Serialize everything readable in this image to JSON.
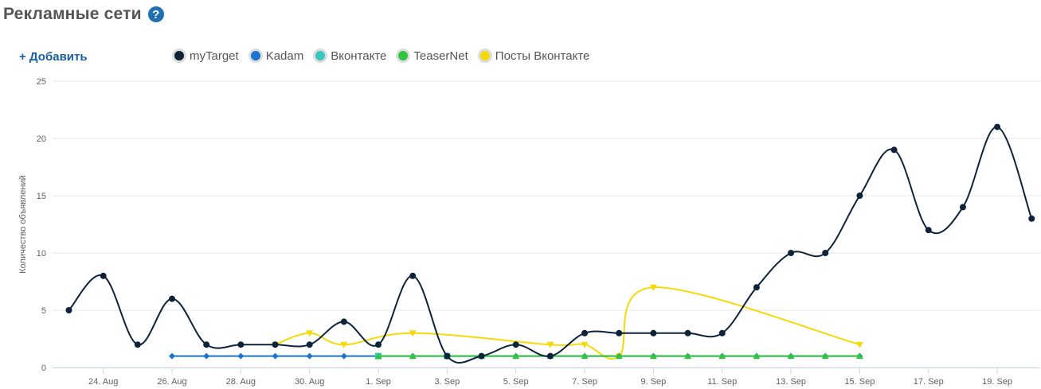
{
  "header": {
    "title": "Рекламные сети",
    "help_icon": "?"
  },
  "add_link": "+ Добавить",
  "colors": {
    "myTarget": "#0d233a",
    "Kadam": "#1b75d0",
    "Вконтакте": "#3cc6c0",
    "TeaserNet": "#33c43f",
    "Посты Вконтакте": "#f5d90a",
    "grid": "#e6e6e6"
  },
  "chart_data": {
    "type": "line",
    "title": "",
    "xlabel": "",
    "ylabel": "Количество объявлений",
    "ylim": [
      0,
      25
    ],
    "yticks": [
      0,
      5,
      10,
      15,
      20,
      25
    ],
    "x": [
      "23 Aug",
      "24 Aug",
      "25 Aug",
      "26 Aug",
      "27 Aug",
      "28 Aug",
      "29 Aug",
      "30 Aug",
      "31 Aug",
      "1 Sep",
      "2 Sep",
      "3 Sep",
      "4 Sep",
      "5 Sep",
      "6 Sep",
      "7 Sep",
      "8 Sep",
      "9 Sep",
      "10 Sep",
      "11 Sep",
      "12 Sep",
      "13 Sep",
      "14 Sep",
      "15 Sep",
      "16 Sep",
      "17 Sep",
      "18 Sep",
      "19 Sep",
      "20 Sep"
    ],
    "tick_labels": [
      "24. Aug",
      "26. Aug",
      "28. Aug",
      "30. Aug",
      "1. Sep",
      "3. Sep",
      "5. Sep",
      "7. Sep",
      "9. Sep",
      "11. Sep",
      "13. Sep",
      "15. Sep",
      "17. Sep",
      "19. Sep"
    ],
    "tick_index": [
      1,
      3,
      5,
      7,
      9,
      11,
      13,
      15,
      17,
      19,
      21,
      23,
      25,
      27
    ],
    "grid": true,
    "legend_position": "top-left",
    "series": [
      {
        "name": "myTarget",
        "marker": "circle",
        "smooth": true,
        "values": [
          5,
          8,
          2,
          6,
          2,
          2,
          2,
          2,
          4,
          2,
          8,
          1,
          1,
          2,
          1,
          3,
          3,
          3,
          3,
          3,
          7,
          10,
          10,
          15,
          19,
          12,
          14,
          21,
          13
        ]
      },
      {
        "name": "Kadam",
        "marker": "diamond",
        "smooth": false,
        "values": [
          null,
          null,
          null,
          1,
          1,
          1,
          1,
          1,
          1,
          1,
          1,
          1,
          1,
          1,
          1,
          1,
          1,
          1,
          1,
          1,
          1,
          1,
          1,
          1,
          null,
          null,
          null,
          null,
          null
        ]
      },
      {
        "name": "Вконтакте",
        "marker": "square",
        "smooth": false,
        "values": [
          null,
          null,
          null,
          null,
          null,
          null,
          null,
          null,
          null,
          1,
          null,
          1,
          null,
          null,
          null,
          null,
          null,
          null,
          null,
          null,
          null,
          null,
          null,
          null,
          null,
          null,
          null,
          null,
          null
        ]
      },
      {
        "name": "TeaserNet",
        "marker": "triangle",
        "smooth": false,
        "values": [
          null,
          null,
          null,
          null,
          null,
          null,
          null,
          null,
          null,
          1,
          1,
          1,
          1,
          1,
          1,
          1,
          1,
          1,
          1,
          1,
          1,
          1,
          1,
          1,
          null,
          null,
          null,
          null,
          null
        ]
      },
      {
        "name": "Посты Вконтакте",
        "marker": "triangle-down",
        "smooth": true,
        "values": [
          null,
          null,
          null,
          null,
          null,
          null,
          2,
          3,
          2,
          null,
          3,
          null,
          null,
          null,
          2,
          2,
          1,
          7,
          null,
          null,
          null,
          null,
          null,
          2,
          null,
          null,
          null,
          null,
          null
        ]
      }
    ]
  }
}
